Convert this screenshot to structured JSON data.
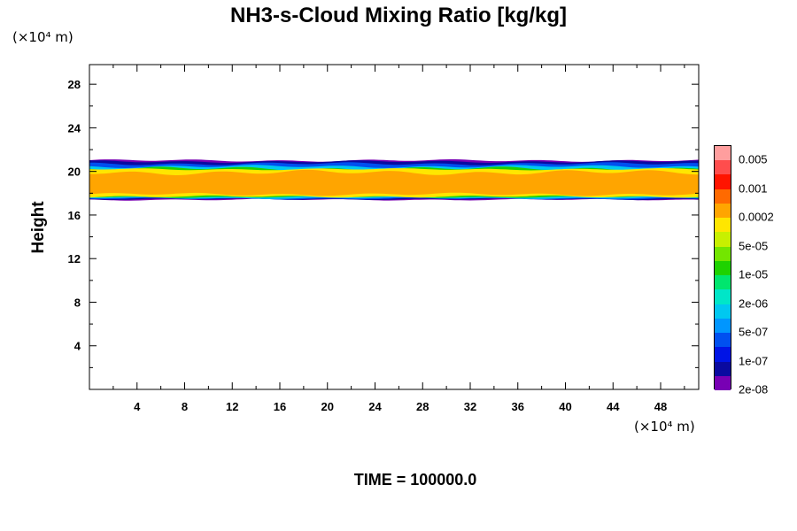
{
  "chart_data": {
    "type": "heatmap",
    "title": "NH3-s-Cloud Mixing Ratio [kg/kg]",
    "ylabel": "Height",
    "x_unit": "(×10⁴ m)",
    "y_unit": "(×10⁴ m)",
    "x_ticks": [
      "4",
      "8",
      "12",
      "16",
      "20",
      "24",
      "28",
      "32",
      "36",
      "40",
      "44",
      "48"
    ],
    "y_ticks": [
      "4",
      "8",
      "12",
      "16",
      "20",
      "24",
      "28"
    ],
    "xlim": [
      0,
      51.2
    ],
    "ylim": [
      0,
      29.8
    ],
    "cloud_layer": {
      "base_height": 17.5,
      "top_height": 21.0,
      "core_bottom": 17.9,
      "core_top": 19.9
    },
    "colorbar": {
      "labels": [
        "0.005",
        "0.001",
        "0.0002",
        "5e-05",
        "1e-05",
        "2e-06",
        "5e-07",
        "1e-07",
        "2e-08"
      ],
      "colors": [
        "#ff9e9e",
        "#ff4d4d",
        "#ff1400",
        "#ff6a00",
        "#ffa500",
        "#ffe600",
        "#c8f000",
        "#73e600",
        "#1ed200",
        "#00e66e",
        "#00e6c8",
        "#00c8f0",
        "#0096ff",
        "#0050f0",
        "#0014e6",
        "#0a0aa0",
        "#7800b4"
      ]
    },
    "time_label": "TIME = 100000.0"
  }
}
